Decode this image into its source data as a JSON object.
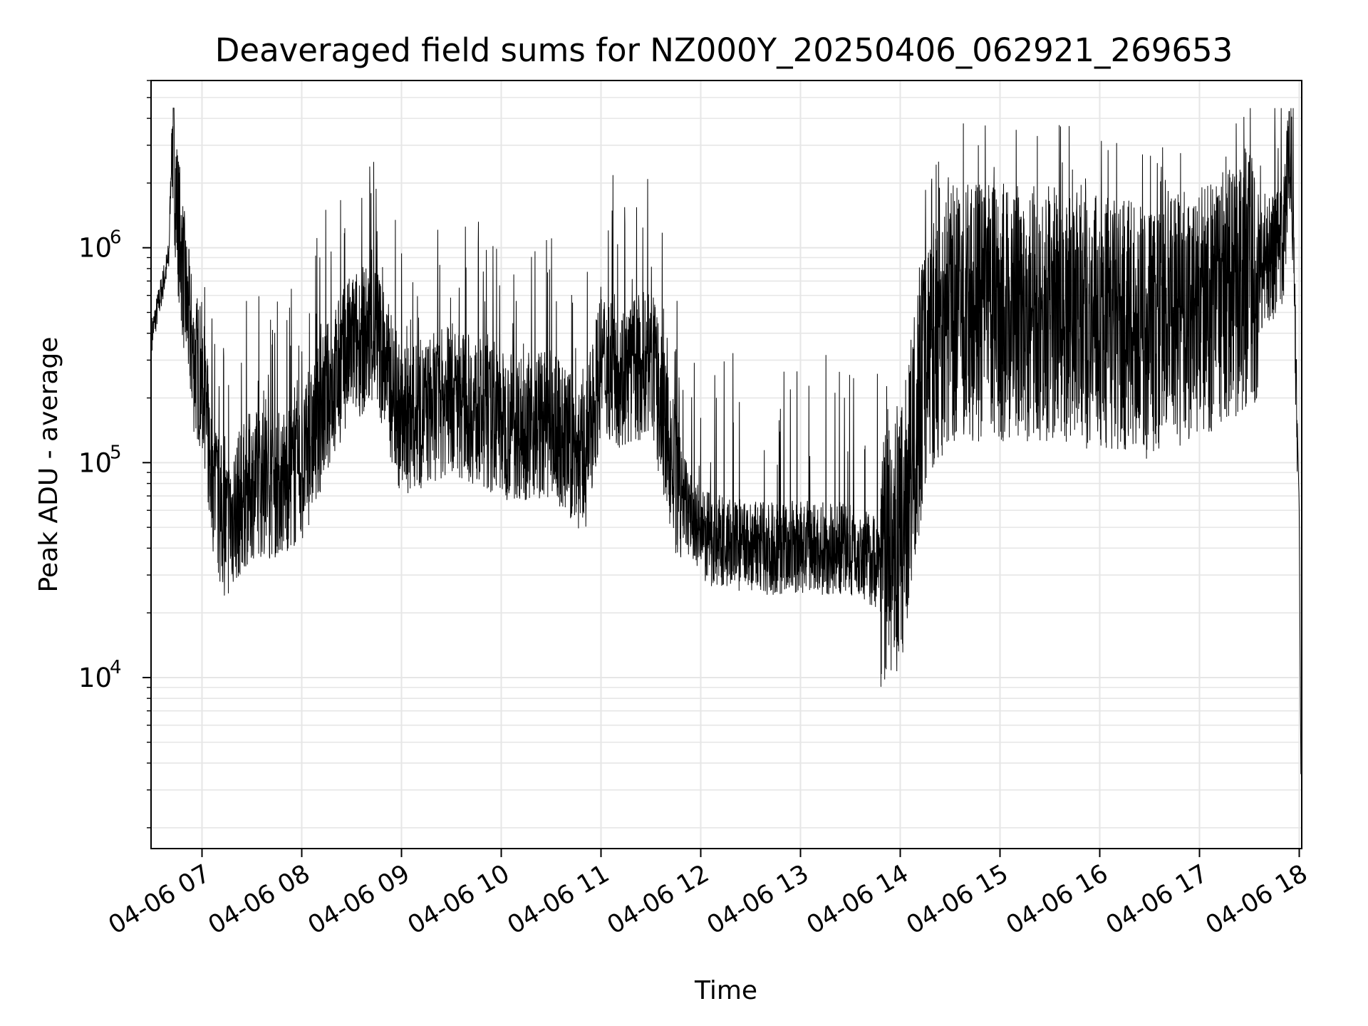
{
  "chart_data": {
    "type": "line",
    "title": "Deaveraged field sums for NZ000Y_20250406_062921_269653",
    "xlabel": "Time",
    "ylabel": "Peak ADU - average",
    "yscale": "log",
    "ylim": [
      1600,
      6000000
    ],
    "xlim": [
      "2025-04-06T06:29:21",
      "2025-04-06T18:01:30"
    ],
    "xtick_labels": [
      "04-06 07",
      "04-06 08",
      "04-06 09",
      "04-06 10",
      "04-06 11",
      "04-06 12",
      "04-06 13",
      "04-06 14",
      "04-06 15",
      "04-06 16",
      "04-06 17",
      "04-06 18"
    ],
    "ytick_labels": [
      {
        "base": "10",
        "exp": "4",
        "value": 10000
      },
      {
        "base": "10",
        "exp": "5",
        "value": 100000
      },
      {
        "base": "10",
        "exp": "6",
        "value": 1000000
      }
    ],
    "grid": true,
    "line_color": "#000000",
    "series": [
      {
        "x": [
          "2025-04-06T06:30",
          "2025-04-06T06:40",
          "2025-04-06T06:42",
          "2025-04-06T06:45",
          "2025-04-06T06:50",
          "2025-04-06T06:55",
          "2025-04-06T07:00",
          "2025-04-06T07:05",
          "2025-04-06T07:10",
          "2025-04-06T07:15",
          "2025-04-06T07:20",
          "2025-04-06T07:30",
          "2025-04-06T07:45",
          "2025-04-06T08:00",
          "2025-04-06T08:15",
          "2025-04-06T08:30",
          "2025-04-06T08:45",
          "2025-04-06T09:00",
          "2025-04-06T09:30",
          "2025-04-06T10:00",
          "2025-04-06T10:30",
          "2025-04-06T10:50",
          "2025-04-06T11:00",
          "2025-04-06T11:15",
          "2025-04-06T11:30",
          "2025-04-06T11:45",
          "2025-04-06T12:00",
          "2025-04-06T12:30",
          "2025-04-06T13:00",
          "2025-04-06T13:30",
          "2025-04-06T13:45",
          "2025-04-06T14:00",
          "2025-04-06T14:15",
          "2025-04-06T14:30",
          "2025-04-06T15:00",
          "2025-04-06T15:30",
          "2025-04-06T16:00",
          "2025-04-06T16:30",
          "2025-04-06T17:00",
          "2025-04-06T17:30",
          "2025-04-06T17:50",
          "2025-04-06T17:55",
          "2025-04-06T18:00",
          "2025-04-06T18:01"
        ],
        "y": [
          400000,
          900000,
          3500000,
          1500000,
          600000,
          300000,
          250000,
          100000,
          60000,
          50000,
          60000,
          80000,
          80000,
          90000,
          200000,
          350000,
          400000,
          150000,
          200000,
          150000,
          150000,
          100000,
          300000,
          250000,
          300000,
          80000,
          45000,
          40000,
          40000,
          40000,
          35000,
          40000,
          300000,
          500000,
          500000,
          500000,
          450000,
          400000,
          500000,
          700000,
          1000000,
          3500000,
          60000,
          3500
        ]
      }
    ]
  }
}
